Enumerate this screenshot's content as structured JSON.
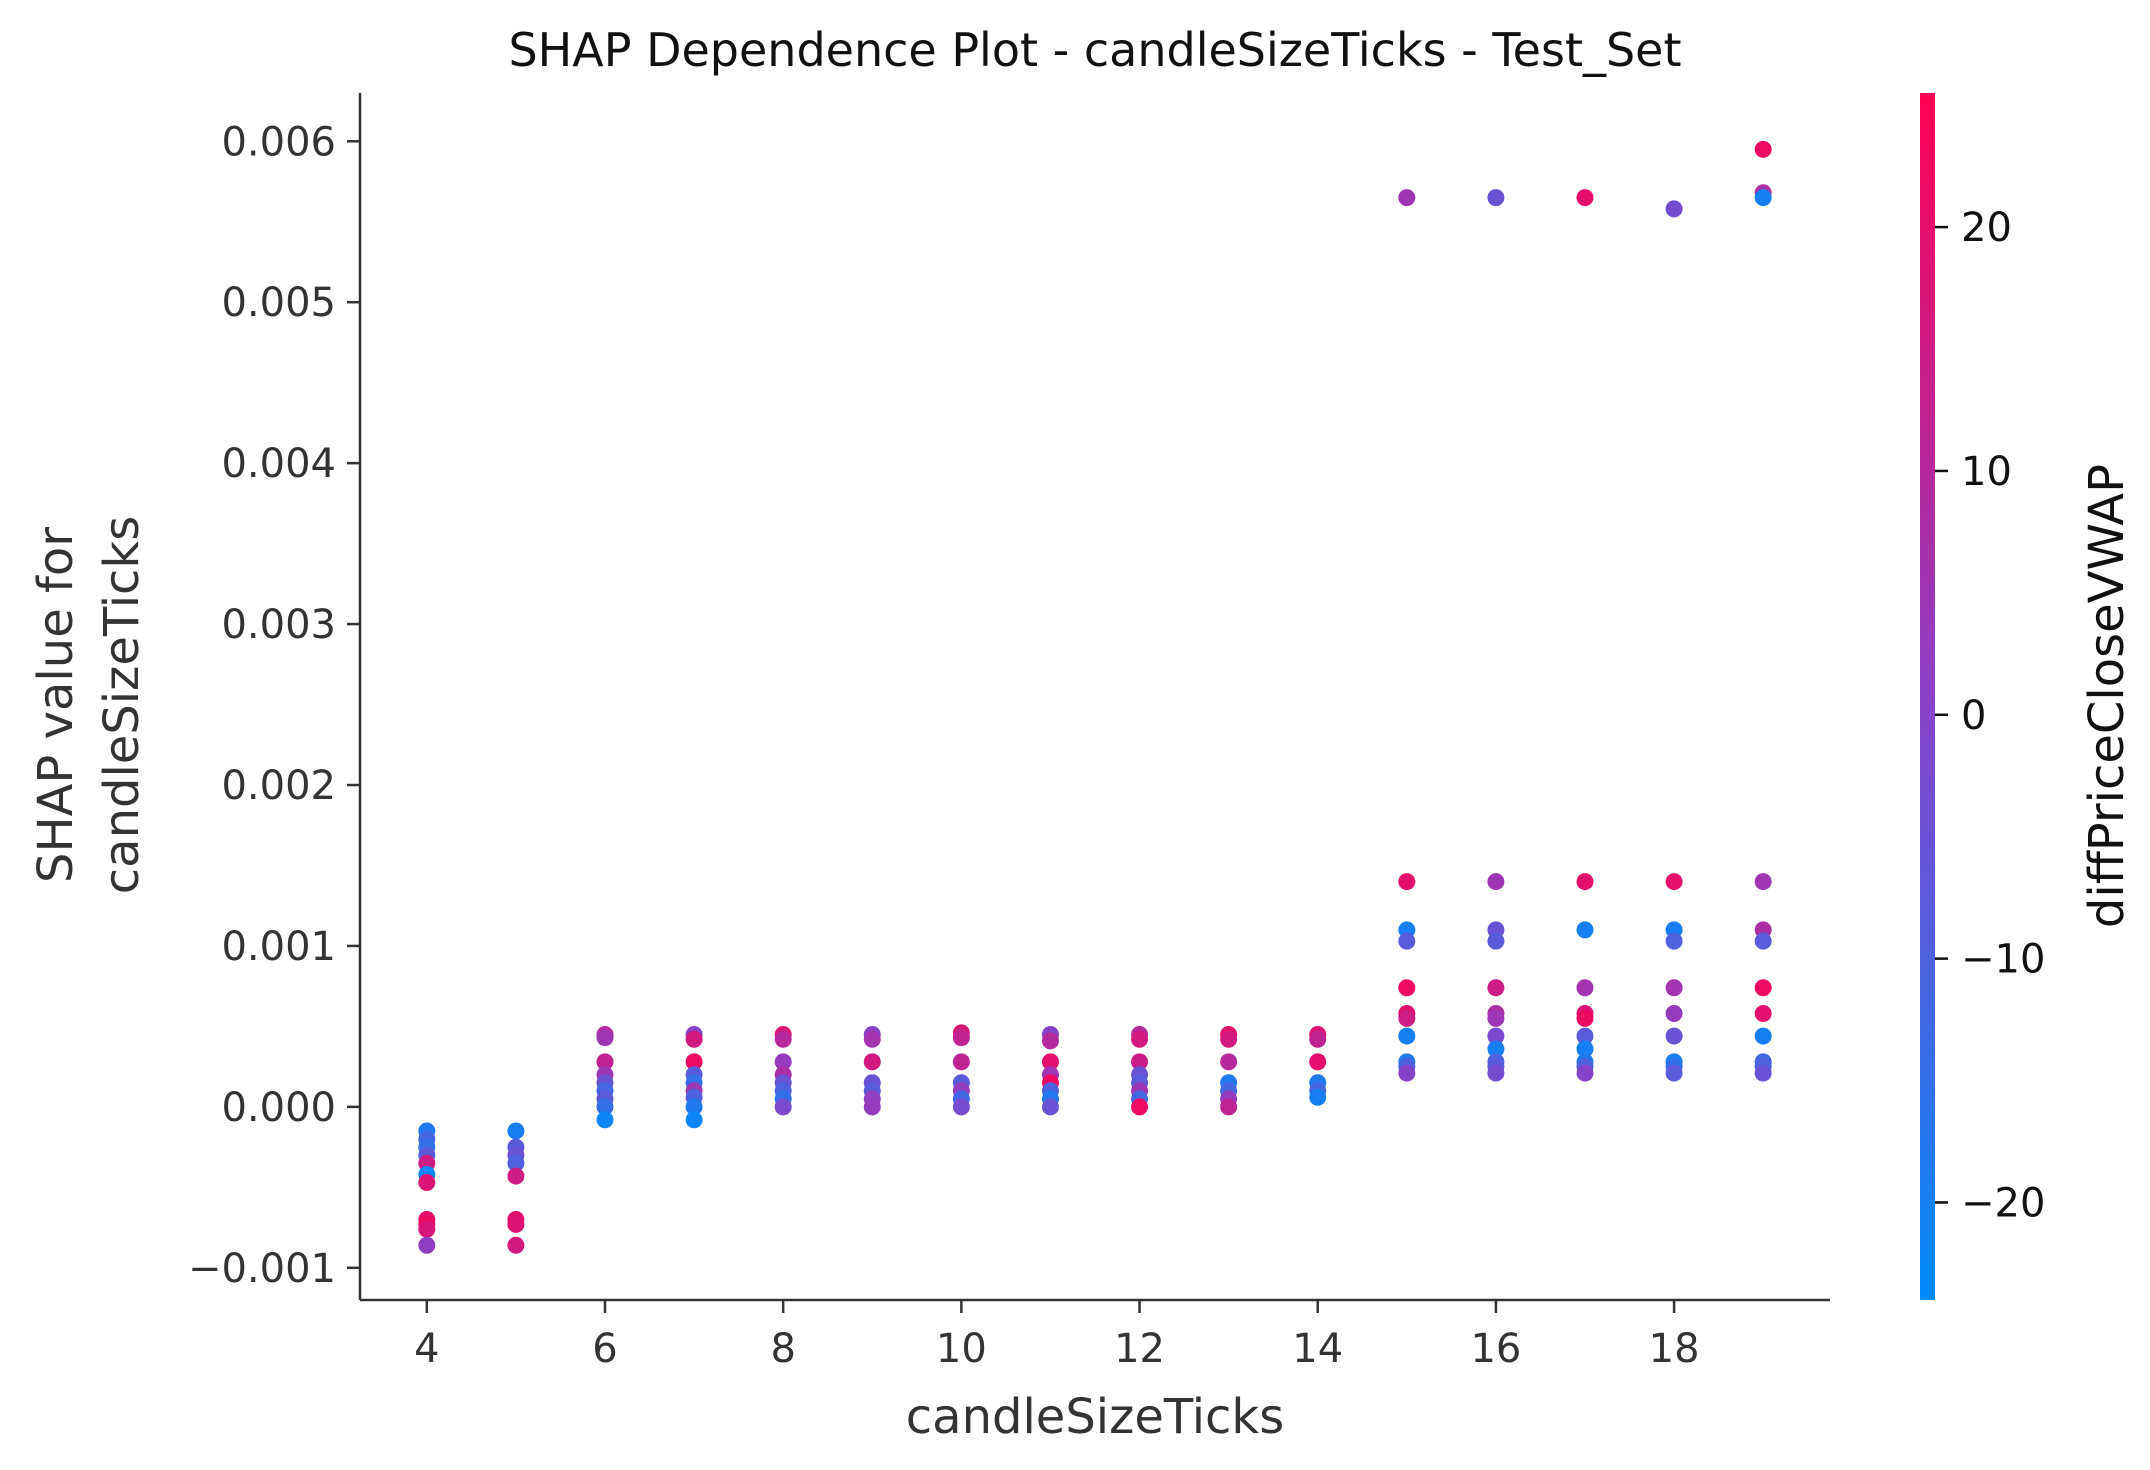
{
  "chart_data": {
    "type": "scatter",
    "title": "SHAP Dependence Plot - candleSizeTicks - Test_Set",
    "xlabel": "candleSizeTicks",
    "ylabel_lines": [
      "SHAP value for",
      "candleSizeTicks"
    ],
    "xlim": [
      3.25,
      19.75
    ],
    "ylim": [
      -0.0012,
      0.0063
    ],
    "xticks": [
      4,
      6,
      8,
      10,
      12,
      14,
      16,
      18
    ],
    "yticks": [
      -0.001,
      0.0,
      0.001,
      0.002,
      0.003,
      0.004,
      0.005,
      0.006
    ],
    "ytick_labels": [
      "−0.001",
      "0.000",
      "0.001",
      "0.002",
      "0.003",
      "0.004",
      "0.005",
      "0.006"
    ],
    "colorbar": {
      "label": "diffPriceCloseVWAP",
      "range": [
        -24,
        25.5
      ],
      "ticks": [
        -20,
        -10,
        0,
        10,
        20
      ],
      "tick_labels": [
        "−20",
        "−10",
        "0",
        "10",
        "20"
      ],
      "colors": {
        "low": "#008bfb",
        "mid": "#8a41c8",
        "high": "#ff0052"
      }
    },
    "points": [
      {
        "x": 4,
        "y": -0.00015,
        "c": -18
      },
      {
        "x": 4,
        "y": -0.0002,
        "c": -12
      },
      {
        "x": 4,
        "y": -0.00025,
        "c": -15
      },
      {
        "x": 4,
        "y": -0.0003,
        "c": -8
      },
      {
        "x": 4,
        "y": -0.00035,
        "c": 15
      },
      {
        "x": 4,
        "y": -0.00042,
        "c": -22
      },
      {
        "x": 4,
        "y": -0.00047,
        "c": 18
      },
      {
        "x": 4,
        "y": -0.0007,
        "c": 20
      },
      {
        "x": 4,
        "y": -0.00073,
        "c": 22
      },
      {
        "x": 4,
        "y": -0.00076,
        "c": 17
      },
      {
        "x": 4,
        "y": -0.00086,
        "c": 2
      },
      {
        "x": 5,
        "y": -0.00015,
        "c": -20
      },
      {
        "x": 5,
        "y": -0.00025,
        "c": -8
      },
      {
        "x": 5,
        "y": -0.0003,
        "c": -5
      },
      {
        "x": 5,
        "y": -0.00035,
        "c": -10
      },
      {
        "x": 5,
        "y": -0.00043,
        "c": 15
      },
      {
        "x": 5,
        "y": -0.0007,
        "c": 20
      },
      {
        "x": 5,
        "y": -0.00073,
        "c": 18
      },
      {
        "x": 5,
        "y": -0.00086,
        "c": 16
      },
      {
        "x": 6,
        "y": 0.00045,
        "c": 10
      },
      {
        "x": 6,
        "y": 0.00043,
        "c": 5
      },
      {
        "x": 6,
        "y": 0.00028,
        "c": 12
      },
      {
        "x": 6,
        "y": 0.0002,
        "c": 5
      },
      {
        "x": 6,
        "y": 0.00015,
        "c": -5
      },
      {
        "x": 6,
        "y": 0.0001,
        "c": -12
      },
      {
        "x": 6,
        "y": 5e-05,
        "c": -8
      },
      {
        "x": 6,
        "y": 0.0,
        "c": -15
      },
      {
        "x": 6,
        "y": -8e-05,
        "c": -22
      },
      {
        "x": 7,
        "y": 0.00045,
        "c": 0
      },
      {
        "x": 7,
        "y": 0.00042,
        "c": 16
      },
      {
        "x": 7,
        "y": 0.00028,
        "c": 22
      },
      {
        "x": 7,
        "y": 0.0002,
        "c": -8
      },
      {
        "x": 7,
        "y": 0.00015,
        "c": -15
      },
      {
        "x": 7,
        "y": 0.0001,
        "c": 5
      },
      {
        "x": 7,
        "y": 6e-05,
        "c": -10
      },
      {
        "x": 7,
        "y": 0.0,
        "c": -18
      },
      {
        "x": 7,
        "y": -8e-05,
        "c": -22
      },
      {
        "x": 8,
        "y": 0.00045,
        "c": 18
      },
      {
        "x": 8,
        "y": 0.00042,
        "c": 10
      },
      {
        "x": 8,
        "y": 0.00028,
        "c": 3
      },
      {
        "x": 8,
        "y": 0.0002,
        "c": 8
      },
      {
        "x": 8,
        "y": 0.00015,
        "c": -5
      },
      {
        "x": 8,
        "y": 0.0001,
        "c": -10
      },
      {
        "x": 8,
        "y": 5e-05,
        "c": -15
      },
      {
        "x": 8,
        "y": 0.0,
        "c": -2
      },
      {
        "x": 9,
        "y": 0.00045,
        "c": 0
      },
      {
        "x": 9,
        "y": 0.00042,
        "c": 6
      },
      {
        "x": 9,
        "y": 0.00028,
        "c": 16
      },
      {
        "x": 9,
        "y": 0.00015,
        "c": -5
      },
      {
        "x": 9,
        "y": 0.0001,
        "c": -8
      },
      {
        "x": 9,
        "y": 5e-05,
        "c": 2
      },
      {
        "x": 9,
        "y": 0.0,
        "c": 3
      },
      {
        "x": 10,
        "y": 0.00046,
        "c": 18
      },
      {
        "x": 10,
        "y": 0.00043,
        "c": 12
      },
      {
        "x": 10,
        "y": 0.00028,
        "c": 12
      },
      {
        "x": 10,
        "y": 0.00015,
        "c": -8
      },
      {
        "x": 10,
        "y": 0.0001,
        "c": 3
      },
      {
        "x": 10,
        "y": 5e-05,
        "c": -12
      },
      {
        "x": 10,
        "y": 0.0,
        "c": -3
      },
      {
        "x": 11,
        "y": 0.00045,
        "c": 0
      },
      {
        "x": 11,
        "y": 0.00041,
        "c": 10
      },
      {
        "x": 11,
        "y": 0.00028,
        "c": 20
      },
      {
        "x": 11,
        "y": 0.0002,
        "c": 5
      },
      {
        "x": 11,
        "y": 0.00015,
        "c": 22
      },
      {
        "x": 11,
        "y": 0.0001,
        "c": -10
      },
      {
        "x": 11,
        "y": 5e-05,
        "c": -18
      },
      {
        "x": 11,
        "y": 0.0,
        "c": -5
      },
      {
        "x": 12,
        "y": 0.00045,
        "c": 10
      },
      {
        "x": 12,
        "y": 0.00042,
        "c": 16
      },
      {
        "x": 12,
        "y": 0.00028,
        "c": 14
      },
      {
        "x": 12,
        "y": 0.0002,
        "c": -5
      },
      {
        "x": 12,
        "y": 0.00015,
        "c": -8
      },
      {
        "x": 12,
        "y": 0.0001,
        "c": 5
      },
      {
        "x": 12,
        "y": 5e-05,
        "c": -12
      },
      {
        "x": 12,
        "y": 0.0,
        "c": 22
      },
      {
        "x": 13,
        "y": 0.00045,
        "c": 20
      },
      {
        "x": 13,
        "y": 0.00042,
        "c": 16
      },
      {
        "x": 13,
        "y": 0.00028,
        "c": 10
      },
      {
        "x": 13,
        "y": 0.00015,
        "c": -18
      },
      {
        "x": 13,
        "y": 0.0001,
        "c": -12
      },
      {
        "x": 13,
        "y": 5e-05,
        "c": 3
      },
      {
        "x": 13,
        "y": 0.0,
        "c": 12
      },
      {
        "x": 14,
        "y": 0.00045,
        "c": 18
      },
      {
        "x": 14,
        "y": 0.00042,
        "c": 12
      },
      {
        "x": 14,
        "y": 0.00028,
        "c": 20
      },
      {
        "x": 14,
        "y": 0.00015,
        "c": -18
      },
      {
        "x": 14,
        "y": 0.0001,
        "c": -12
      },
      {
        "x": 14,
        "y": 6e-05,
        "c": -20
      },
      {
        "x": 15,
        "y": 0.00565,
        "c": 5
      },
      {
        "x": 15,
        "y": 0.0014,
        "c": 20
      },
      {
        "x": 15,
        "y": 0.0011,
        "c": -20
      },
      {
        "x": 15,
        "y": 0.00103,
        "c": -8
      },
      {
        "x": 15,
        "y": 0.00074,
        "c": 22
      },
      {
        "x": 15,
        "y": 0.00058,
        "c": 20
      },
      {
        "x": 15,
        "y": 0.00055,
        "c": 15
      },
      {
        "x": 15,
        "y": 0.00044,
        "c": -20
      },
      {
        "x": 15,
        "y": 0.00028,
        "c": -18
      },
      {
        "x": 15,
        "y": 0.00025,
        "c": -10
      },
      {
        "x": 15,
        "y": 0.00021,
        "c": 0
      },
      {
        "x": 16,
        "y": 0.00565,
        "c": -5
      },
      {
        "x": 16,
        "y": 0.0014,
        "c": 5
      },
      {
        "x": 16,
        "y": 0.0011,
        "c": -5
      },
      {
        "x": 16,
        "y": 0.00103,
        "c": -8
      },
      {
        "x": 16,
        "y": 0.00074,
        "c": 15
      },
      {
        "x": 16,
        "y": 0.00058,
        "c": 8
      },
      {
        "x": 16,
        "y": 0.00055,
        "c": 5
      },
      {
        "x": 16,
        "y": 0.00044,
        "c": -2
      },
      {
        "x": 16,
        "y": 0.00036,
        "c": -20
      },
      {
        "x": 16,
        "y": 0.00028,
        "c": -10
      },
      {
        "x": 16,
        "y": 0.00025,
        "c": -8
      },
      {
        "x": 16,
        "y": 0.00021,
        "c": -3
      },
      {
        "x": 17,
        "y": 0.00565,
        "c": 20
      },
      {
        "x": 17,
        "y": 0.0014,
        "c": 20
      },
      {
        "x": 17,
        "y": 0.0011,
        "c": -20
      },
      {
        "x": 17,
        "y": 0.00074,
        "c": 6
      },
      {
        "x": 17,
        "y": 0.00058,
        "c": 18
      },
      {
        "x": 17,
        "y": 0.00055,
        "c": 22
      },
      {
        "x": 17,
        "y": 0.00044,
        "c": -8
      },
      {
        "x": 17,
        "y": 0.00036,
        "c": -20
      },
      {
        "x": 17,
        "y": 0.00028,
        "c": -18
      },
      {
        "x": 17,
        "y": 0.00025,
        "c": -10
      },
      {
        "x": 17,
        "y": 0.00021,
        "c": 0
      },
      {
        "x": 18,
        "y": 0.00558,
        "c": -3
      },
      {
        "x": 18,
        "y": 0.0014,
        "c": 20
      },
      {
        "x": 18,
        "y": 0.0011,
        "c": -20
      },
      {
        "x": 18,
        "y": 0.00103,
        "c": -10
      },
      {
        "x": 18,
        "y": 0.00074,
        "c": 6
      },
      {
        "x": 18,
        "y": 0.00058,
        "c": 3
      },
      {
        "x": 18,
        "y": 0.00044,
        "c": -5
      },
      {
        "x": 18,
        "y": 0.00028,
        "c": -20
      },
      {
        "x": 18,
        "y": 0.00025,
        "c": -15
      },
      {
        "x": 18,
        "y": 0.00021,
        "c": -8
      },
      {
        "x": 19,
        "y": 0.00595,
        "c": 22
      },
      {
        "x": 19,
        "y": 0.00568,
        "c": 8
      },
      {
        "x": 19,
        "y": 0.00565,
        "c": -20
      },
      {
        "x": 19,
        "y": 0.0014,
        "c": 5
      },
      {
        "x": 19,
        "y": 0.0011,
        "c": 8
      },
      {
        "x": 19,
        "y": 0.00103,
        "c": -8
      },
      {
        "x": 19,
        "y": 0.00074,
        "c": 22
      },
      {
        "x": 19,
        "y": 0.00058,
        "c": 20
      },
      {
        "x": 19,
        "y": 0.00044,
        "c": -20
      },
      {
        "x": 19,
        "y": 0.00028,
        "c": -12
      },
      {
        "x": 19,
        "y": 0.00025,
        "c": -10
      },
      {
        "x": 19,
        "y": 0.00021,
        "c": -5
      }
    ]
  }
}
